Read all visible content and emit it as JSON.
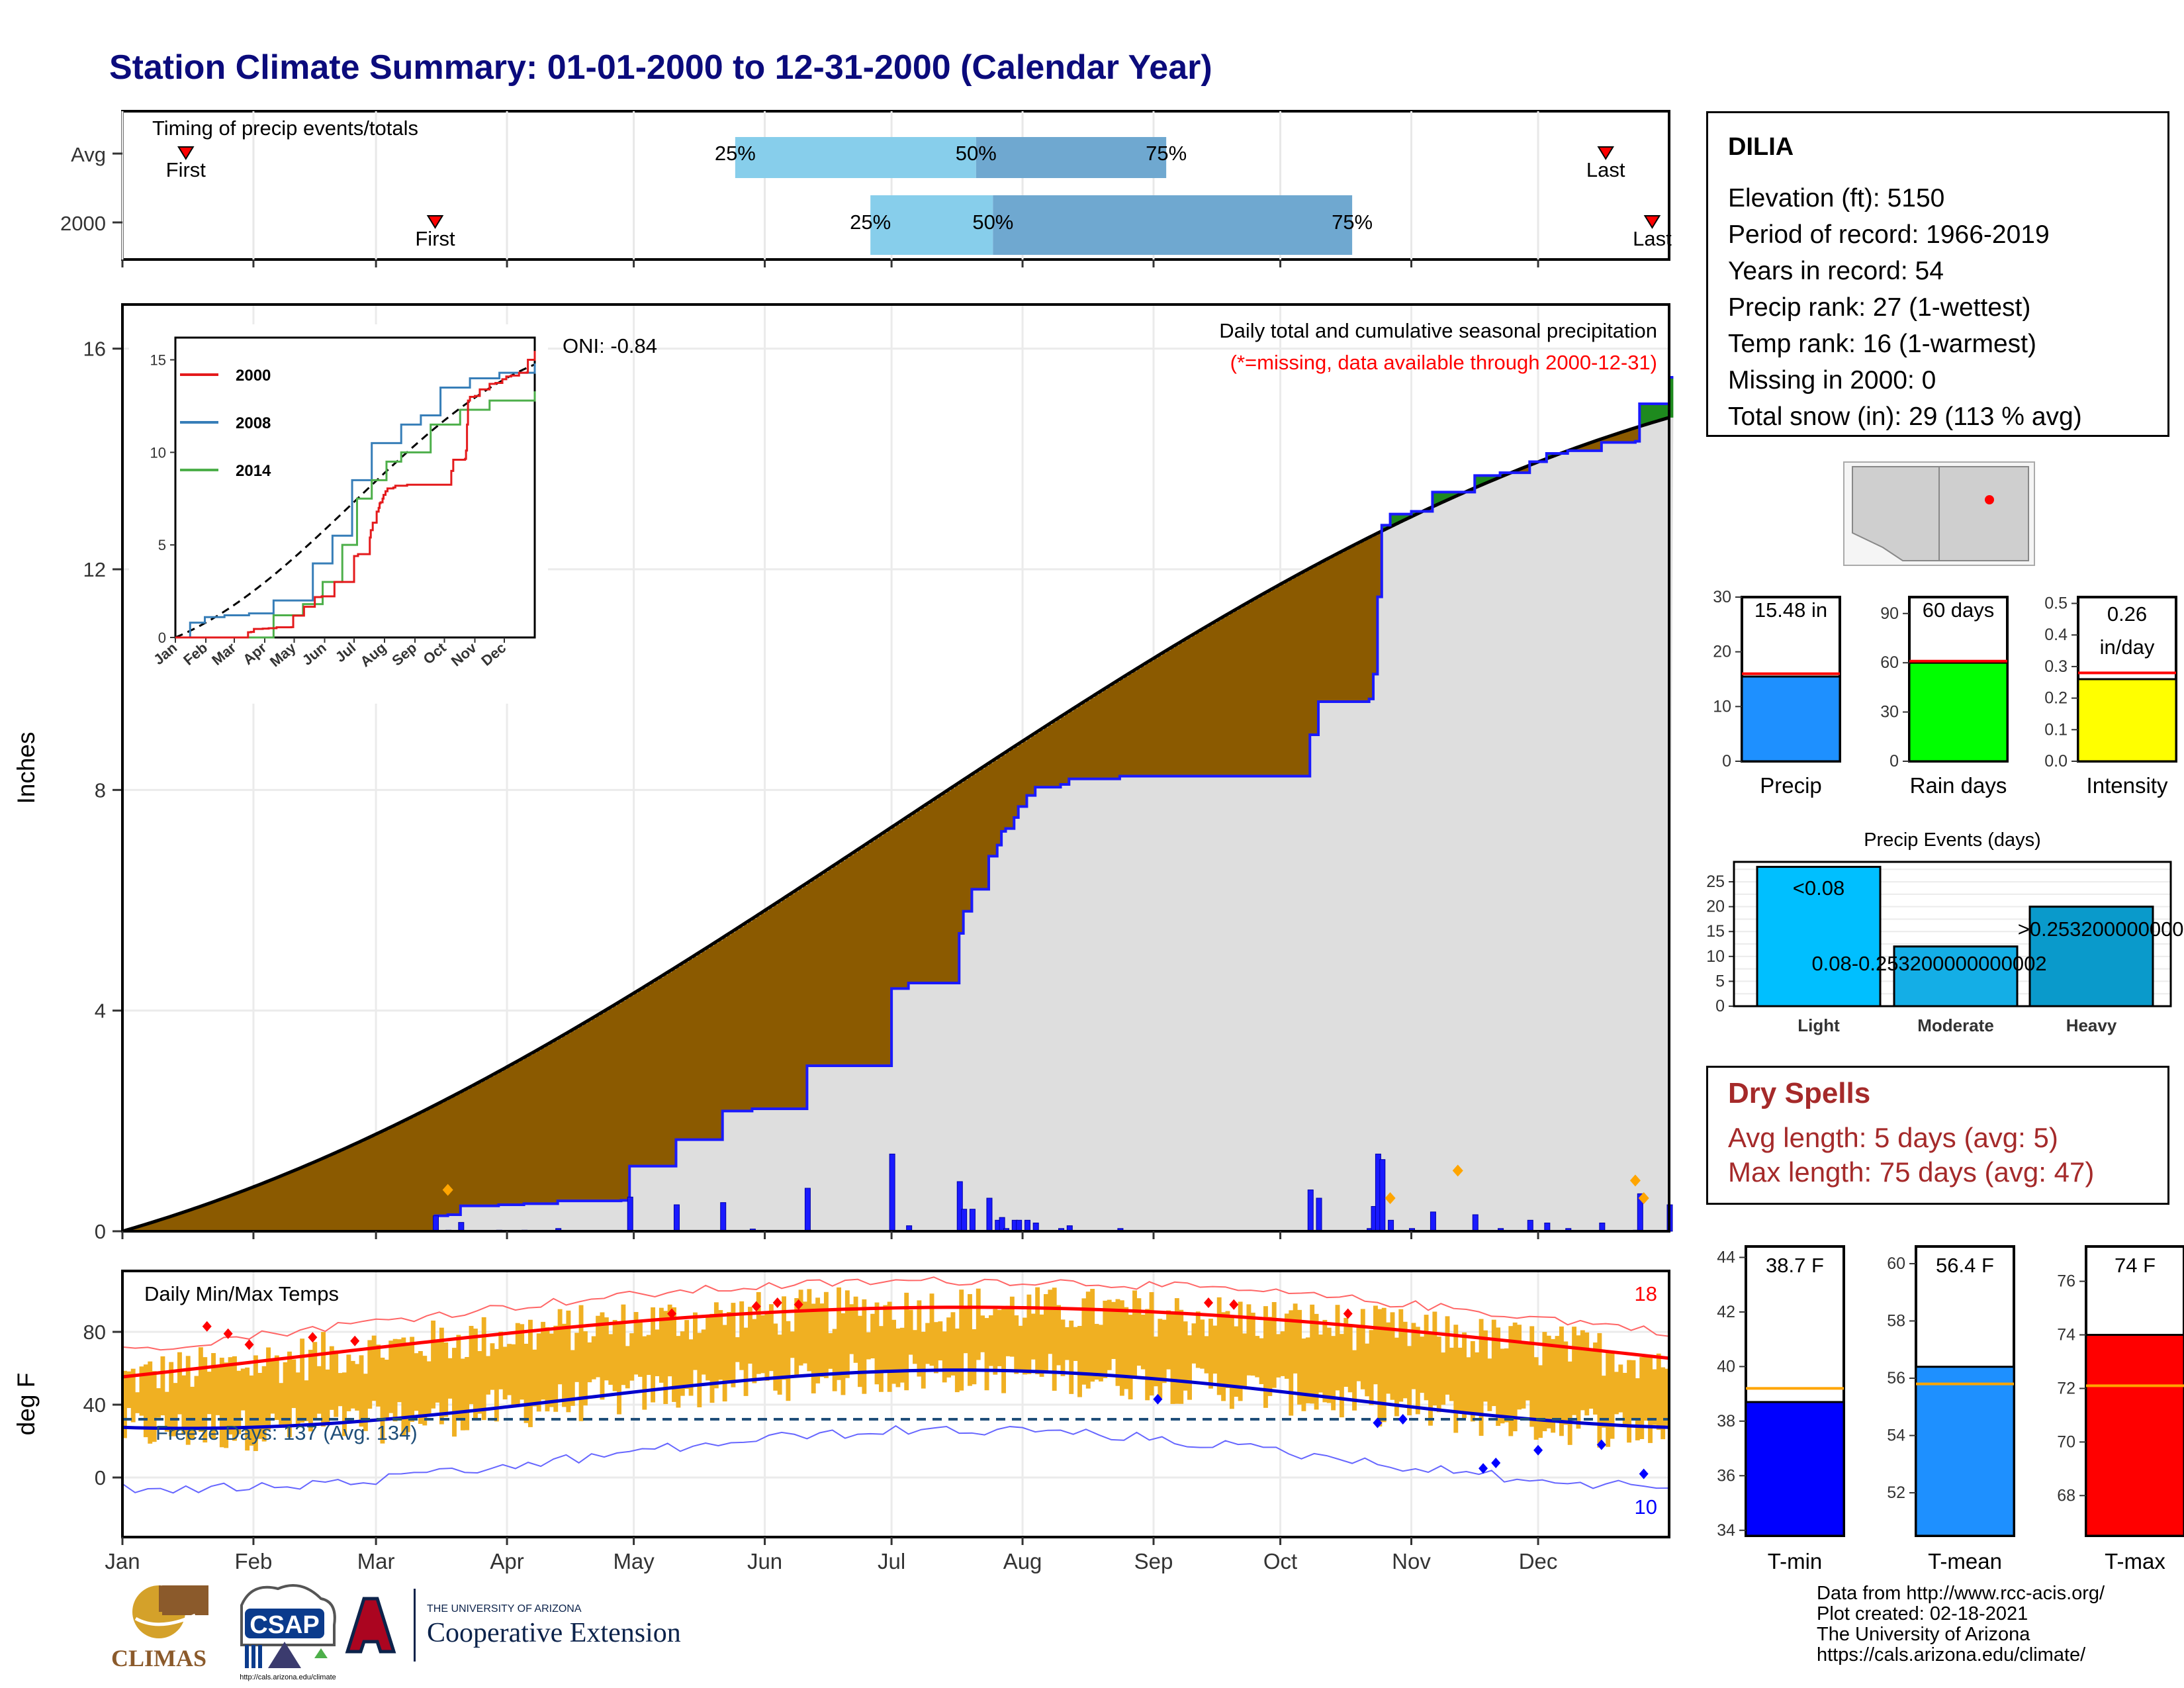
{
  "title": "Station Climate Summary: 01-01-2000 to 12-31-2000 (Calendar Year)",
  "months": [
    "Jan",
    "Feb",
    "Mar",
    "Apr",
    "May",
    "Jun",
    "Jul",
    "Aug",
    "Sep",
    "Oct",
    "Nov",
    "Dec"
  ],
  "timing_panel": {
    "label": "Timing of precip events/totals",
    "rows": [
      {
        "name": "Avg",
        "first_day": 15,
        "p25_day": 145,
        "p50_day": 202,
        "p75_day": 247,
        "last_day": 351
      },
      {
        "name": "2000",
        "first_day": 74,
        "p25_day": 177,
        "p50_day": 206,
        "p75_day": 291,
        "last_day": 362
      }
    ],
    "markers": {
      "first": "First",
      "last": "Last",
      "p25": "25%",
      "p50": "50%",
      "p75": "75%"
    }
  },
  "precip_panel": {
    "ylabel": "Inches",
    "yticks": [
      0,
      4,
      8,
      12,
      16
    ],
    "ylim": [
      0,
      16.8
    ],
    "oni": "ONI: -0.84",
    "legend_title": "Daily total and cumulative seasonal precipitation",
    "legend_note": "(*=missing, data available through 2000-12-31)",
    "colors": {
      "deficit": "#8b5a00",
      "surplus": "#1e8a1e",
      "observed_fill": "#dedede",
      "observed_line": "#1a1aff",
      "avg_line": "#000000",
      "daily_bars": "#1a1aff"
    }
  },
  "inset": {
    "yticks": [
      0,
      5,
      10,
      15
    ],
    "months": [
      "Jan",
      "Feb",
      "Mar",
      "Apr",
      "May",
      "Jun",
      "Jul",
      "Aug",
      "Sep",
      "Oct",
      "Nov",
      "Dec"
    ],
    "legend": [
      {
        "name": "2000",
        "color": "#e41a1c"
      },
      {
        "name": "2008",
        "color": "#377eb8"
      },
      {
        "name": "2014",
        "color": "#4daf4a"
      }
    ]
  },
  "temp_panel": {
    "title": "Daily Min/Max Temps",
    "ylabel": "deg F",
    "yticks": [
      0,
      40,
      80
    ],
    "freeze_text": "Freeze Days: 137 (Avg. 134)",
    "record_high_count": "18",
    "record_low_count": "10"
  },
  "station": {
    "name": "DILIA",
    "lines": [
      "Elevation (ft): 5150",
      "Period of record: 1966-2019",
      "Years in record: 54",
      "Precip rank: 27 (1-wettest)",
      "Temp rank: 16 (1-warmest)",
      "Missing in 2000: 0",
      "Total snow (in): 29 (113 % avg)"
    ]
  },
  "summary_bars": [
    {
      "label": "Precip",
      "value_text": "15.48 in",
      "value": 15.48,
      "avg": 16.0,
      "ymax": 30,
      "yticks": [
        "0",
        "10",
        "20",
        "30"
      ],
      "color": "#1e90ff"
    },
    {
      "label": "Rain days",
      "value_text": "60 days",
      "value": 60,
      "avg": 61,
      "ymax": 100,
      "yticks": [
        "0",
        "30",
        "60",
        "90"
      ],
      "color": "#00ff00"
    },
    {
      "label": "Intensity",
      "value_text": "0.26 in/day",
      "value": 0.26,
      "avg": 0.28,
      "ymax": 0.52,
      "yticks": [
        "0.0",
        "0.1",
        "0.2",
        "0.3",
        "0.4",
        "0.5"
      ],
      "color": "#ffff00"
    }
  ],
  "precip_events": {
    "title": "Precip Events (days)",
    "yticks": [
      "0",
      "5",
      "10",
      "15",
      "20",
      "25"
    ],
    "bars": [
      {
        "label": "Light",
        "bar_text": "<0.08",
        "value": 28,
        "color": "#00bfff"
      },
      {
        "label": "Moderate",
        "bar_text": "0.08-0.253200000000002",
        "value": 12,
        "color": "#14aee6"
      },
      {
        "label": "Heavy",
        "bar_text": ">0.253200000000002",
        "value": 20,
        "color": "#0a9acb"
      }
    ]
  },
  "dry_spells": {
    "title": "Dry Spells",
    "lines": [
      "Avg length: 5 days (avg: 5)",
      "Max length: 75 days (avg: 47)"
    ]
  },
  "temp_bars": [
    {
      "label": "T-min",
      "value_text": "38.7 F",
      "value": 38.7,
      "avg": 39.2,
      "ymin": 33.8,
      "ymax": 44.4,
      "yticks": [
        34,
        36,
        38,
        40,
        42,
        44
      ],
      "color": "#0000ff"
    },
    {
      "label": "T-mean",
      "value_text": "56.4 F",
      "value": 56.4,
      "avg": 55.8,
      "ymin": 50.5,
      "ymax": 60.6,
      "yticks": [
        52,
        54,
        56,
        58,
        60
      ],
      "color": "#1e90ff"
    },
    {
      "label": "T-max",
      "value_text": "74 F",
      "value": 74,
      "avg": 72.1,
      "ymin": 66.5,
      "ymax": 77.3,
      "yticks": [
        68,
        70,
        72,
        74,
        76
      ],
      "color": "#ff0000"
    }
  ],
  "credits": [
    "Data from http://www.rcc-acis.org/",
    "Plot created: 02-18-2021",
    "The University of Arizona",
    "https://cals.arizona.edu/climate/"
  ],
  "logos": {
    "climas": "CLIMAS",
    "csap": "CSAP",
    "csap_url": "http://cals.arizona.edu/climate",
    "ua_small": "THE UNIVERSITY OF ARIZONA",
    "ua_ext": "Cooperative Extension"
  }
}
